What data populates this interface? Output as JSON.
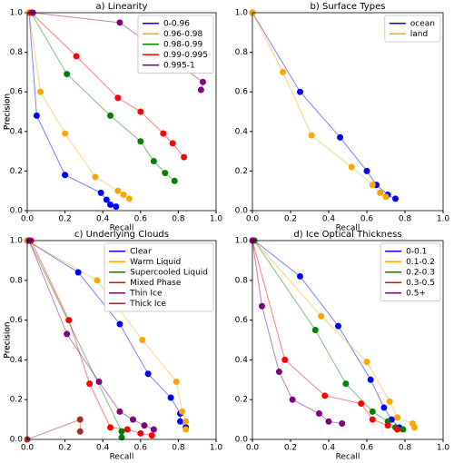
{
  "chart_data": [
    {
      "type": "line",
      "title": "a) Linearity",
      "xlabel": "Recall",
      "ylabel": "Precision",
      "legend": "upper right",
      "xlim": [
        0,
        1
      ],
      "ylim": [
        0,
        1
      ],
      "xticks": [
        {
          "value": 0,
          "label": "0.0"
        },
        0.2,
        0.4,
        0.6,
        0.8,
        {
          "value": 1,
          "label": "1.0"
        }
      ],
      "yticks": [
        {
          "value": 0,
          "label": "0.0"
        },
        0.2,
        0.4,
        0.6,
        0.8,
        {
          "value": 1,
          "label": "1.0"
        }
      ],
      "series": [
        {
          "name": "0-0.96",
          "color": "#0000ff",
          "x": [
            0.01,
            0.05,
            0.2,
            0.39,
            0.42,
            0.44,
            0.47
          ],
          "values": [
            1.0,
            0.48,
            0.18,
            0.09,
            0.055,
            0.03,
            0.02
          ]
        },
        {
          "name": "0.96-0.98",
          "color": "#ffa500",
          "x": [
            0.01,
            0.07,
            0.2,
            0.36,
            0.48,
            0.51,
            0.54
          ],
          "values": [
            1.0,
            0.6,
            0.39,
            0.17,
            0.1,
            0.08,
            0.06
          ]
        },
        {
          "name": "0.98-0.99",
          "color": "#008000",
          "x": [
            0.02,
            0.21,
            0.44,
            0.6,
            0.67,
            0.73,
            0.78
          ],
          "values": [
            1.0,
            0.69,
            0.48,
            0.35,
            0.25,
            0.19,
            0.15
          ]
        },
        {
          "name": "0.99-0.995",
          "color": "#ff0000",
          "x": [
            0.02,
            0.26,
            0.48,
            0.6,
            0.72,
            0.77,
            0.83
          ],
          "values": [
            1.0,
            0.78,
            0.57,
            0.5,
            0.39,
            0.34,
            0.27
          ]
        },
        {
          "name": "0.995-1",
          "color": "#800080",
          "x": [
            0.03,
            0.49,
            0.93,
            0.92
          ],
          "values": [
            1.0,
            0.95,
            0.65,
            0.61
          ]
        }
      ]
    },
    {
      "type": "line",
      "title": "b) Surface Types",
      "xlabel": "Recall",
      "ylabel": "Precision",
      "legend": "upper right",
      "xlim": [
        0,
        1
      ],
      "ylim": [
        0,
        1
      ],
      "xticks": [
        {
          "value": 0,
          "label": "0.0"
        },
        0.2,
        0.4,
        0.6,
        0.8,
        {
          "value": 1,
          "label": "1.0"
        }
      ],
      "yticks": [
        {
          "value": 0,
          "label": "0.0"
        },
        0.2,
        0.4,
        0.6,
        0.8,
        {
          "value": 1,
          "label": "1.0"
        }
      ],
      "series": [
        {
          "name": "ocean",
          "color": "#0000ff",
          "x": [
            0.0,
            0.25,
            0.46,
            0.6,
            0.65,
            0.71,
            0.75
          ],
          "values": [
            1.0,
            0.6,
            0.37,
            0.2,
            0.13,
            0.08,
            0.06
          ]
        },
        {
          "name": "land",
          "color": "#ffa500",
          "x": [
            0.0,
            0.16,
            0.31,
            0.52,
            0.63,
            0.67,
            0.7
          ],
          "values": [
            1.0,
            0.7,
            0.38,
            0.22,
            0.13,
            0.09,
            0.07
          ]
        }
      ]
    },
    {
      "type": "line",
      "title": "c) Underlying Clouds",
      "xlabel": "Recall",
      "ylabel": "Precision",
      "legend": "upper right",
      "xlim": [
        0,
        1
      ],
      "ylim": [
        0,
        1
      ],
      "xticks": [
        {
          "value": 0,
          "label": "0.0"
        },
        0.2,
        0.4,
        0.6,
        0.8,
        {
          "value": 1,
          "label": "1.0"
        }
      ],
      "yticks": [
        {
          "value": 0,
          "label": "0.0"
        },
        0.2,
        0.4,
        0.6,
        0.8,
        {
          "value": 1,
          "label": "1.0"
        }
      ],
      "series": [
        {
          "name": "Clear",
          "color": "#0000ff",
          "x": [
            0.0,
            0.27,
            0.49,
            0.64,
            0.76,
            0.81,
            0.81,
            0.84
          ],
          "values": [
            1.0,
            0.84,
            0.58,
            0.33,
            0.21,
            0.13,
            0.09,
            0.06
          ]
        },
        {
          "name": "Warm Liquid",
          "color": "#ffa500",
          "x": [
            0.0,
            0.37,
            0.61,
            0.79,
            0.82,
            0.84,
            0.84
          ],
          "values": [
            1.0,
            0.8,
            0.5,
            0.29,
            0.14,
            0.09,
            0.05
          ]
        },
        {
          "name": "Supercooled Liquid",
          "color": "#008000",
          "x": [
            0.01,
            0.5,
            0.5
          ],
          "values": [
            1.0,
            0.04,
            0.01
          ]
        },
        {
          "name": "Mixed Phase",
          "color": "#ff0000",
          "x": [
            0.02,
            0.22,
            0.33,
            0.44,
            0.53,
            0.6,
            0.66
          ],
          "values": [
            1.0,
            0.6,
            0.28,
            0.06,
            0.05,
            0.03,
            0.02
          ]
        },
        {
          "name": "Thin Ice",
          "color": "#800080",
          "x": [
            0.01,
            0.21,
            0.38,
            0.49,
            0.56,
            0.62,
            0.67
          ],
          "values": [
            1.0,
            0.53,
            0.29,
            0.14,
            0.1,
            0.07,
            0.05
          ]
        },
        {
          "name": "Thick Ice",
          "color": "#a52a2a",
          "x": [
            0.0,
            0.28,
            0.28
          ],
          "values": [
            0.0,
            0.1,
            0.04
          ]
        }
      ]
    },
    {
      "type": "line",
      "title": "d) Ice Optical Thickness",
      "xlabel": "Recall",
      "ylabel": "Precision",
      "legend": "upper right",
      "xlim": [
        0,
        1
      ],
      "ylim": [
        0,
        1
      ],
      "xticks": [
        {
          "value": 0,
          "label": "0.0"
        },
        0.2,
        0.4,
        0.6,
        0.8,
        {
          "value": 1,
          "label": "1.0"
        }
      ],
      "yticks": [
        {
          "value": 0,
          "label": "0.0"
        },
        0.2,
        0.4,
        0.6,
        0.8,
        {
          "value": 1,
          "label": "1.0"
        }
      ],
      "series": [
        {
          "name": "0-0.1",
          "color": "#0000ff",
          "x": [
            0.01,
            0.25,
            0.45,
            0.62,
            0.69,
            0.73,
            0.77
          ],
          "values": [
            1.0,
            0.82,
            0.57,
            0.3,
            0.16,
            0.1,
            0.06
          ]
        },
        {
          "name": "0.1-0.2",
          "color": "#ffa500",
          "x": [
            0.01,
            0.36,
            0.6,
            0.72,
            0.76,
            0.84,
            0.85
          ],
          "values": [
            1.0,
            0.62,
            0.39,
            0.19,
            0.11,
            0.08,
            0.06
          ]
        },
        {
          "name": "0.2-0.3",
          "color": "#008000",
          "x": [
            0.01,
            0.33,
            0.49,
            0.63,
            0.71,
            0.75,
            0.79
          ],
          "values": [
            1.0,
            0.55,
            0.28,
            0.14,
            0.09,
            0.06,
            0.05
          ]
        },
        {
          "name": "0.3-0.5",
          "color": "#ff0000",
          "x": [
            0.0,
            0.17,
            0.38,
            0.57,
            0.63,
            0.71,
            0.76
          ],
          "values": [
            1.0,
            0.4,
            0.22,
            0.18,
            0.1,
            0.07,
            0.05
          ]
        },
        {
          "name": "0.5+",
          "color": "#800080",
          "x": [
            0.0,
            0.05,
            0.14,
            0.21,
            0.35,
            0.4,
            0.47
          ],
          "values": [
            1.0,
            0.67,
            0.34,
            0.2,
            0.13,
            0.09,
            0.08
          ]
        }
      ]
    }
  ]
}
